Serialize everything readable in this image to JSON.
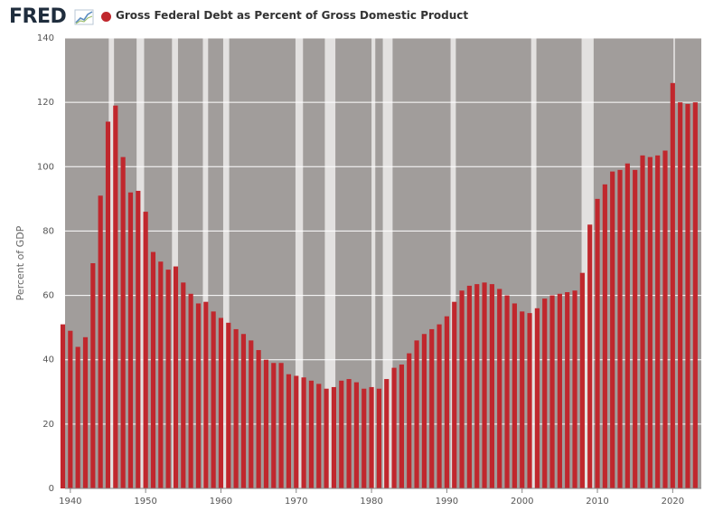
{
  "header": {
    "logo_text": "FRED",
    "title": "Gross Federal Debt as Percent of Gross Domestic Product"
  },
  "colors": {
    "bar": "#c0272d",
    "plot_background": "#a19d9b",
    "recession": "#e3e1e0",
    "grid": "#ffffff",
    "legend_dot": "#c0272d"
  },
  "chart_data": {
    "type": "bar",
    "title": "Gross Federal Debt as Percent of Gross Domestic Product",
    "xlabel": "",
    "ylabel": "Percent of GDP",
    "ylim": [
      0,
      140
    ],
    "xlim": [
      1939.3,
      2023.8
    ],
    "y_ticks": [
      "0",
      "20",
      "40",
      "60",
      "80",
      "100",
      "120",
      "140"
    ],
    "x_ticks": [
      "1940",
      "1950",
      "1960",
      "1970",
      "1980",
      "1990",
      "2000",
      "2010",
      "2020"
    ],
    "grid": true,
    "legend": "top-left",
    "categories": [
      1939,
      1940,
      1941,
      1942,
      1943,
      1944,
      1945,
      1946,
      1947,
      1948,
      1949,
      1950,
      1951,
      1952,
      1953,
      1954,
      1955,
      1956,
      1957,
      1958,
      1959,
      1960,
      1961,
      1962,
      1963,
      1964,
      1965,
      1966,
      1967,
      1968,
      1969,
      1970,
      1971,
      1972,
      1973,
      1974,
      1975,
      1976,
      1977,
      1978,
      1979,
      1980,
      1981,
      1982,
      1983,
      1984,
      1985,
      1986,
      1987,
      1988,
      1989,
      1990,
      1991,
      1992,
      1993,
      1994,
      1995,
      1996,
      1997,
      1998,
      1999,
      2000,
      2001,
      2002,
      2003,
      2004,
      2005,
      2006,
      2007,
      2008,
      2009,
      2010,
      2011,
      2012,
      2013,
      2014,
      2015,
      2016,
      2017,
      2018,
      2019,
      2020,
      2021,
      2022,
      2023
    ],
    "values": [
      51,
      49,
      44,
      47,
      70,
      91,
      114,
      119,
      103,
      92,
      92.5,
      86,
      73.5,
      70.5,
      68,
      69,
      64,
      60.5,
      57.5,
      58,
      55,
      53,
      51.5,
      49.5,
      48,
      46,
      43,
      40,
      39,
      39,
      35.5,
      35,
      34.5,
      33.5,
      32.5,
      31,
      31.5,
      33.5,
      34,
      33,
      31,
      31.5,
      31,
      34,
      37.5,
      38.5,
      42,
      46,
      48,
      49.5,
      51,
      53.5,
      58,
      61.5,
      63,
      63.5,
      64,
      63.5,
      62,
      60,
      57.5,
      55,
      54.5,
      56,
      59,
      60,
      60.5,
      61,
      61.5,
      67,
      82,
      90,
      94.5,
      98.5,
      99,
      101,
      99,
      103.5,
      103,
      103.5,
      105,
      126,
      120,
      119.5,
      120
    ],
    "recessions": [
      [
        1945.1,
        1945.8
      ],
      [
        1948.8,
        1949.8
      ],
      [
        1953.5,
        1954.3
      ],
      [
        1957.6,
        1958.3
      ],
      [
        1960.3,
        1961.1
      ],
      [
        1969.9,
        1970.9
      ],
      [
        1973.8,
        1975.2
      ],
      [
        1980.0,
        1980.5
      ],
      [
        1981.5,
        1982.8
      ],
      [
        1990.5,
        1991.2
      ],
      [
        2001.2,
        2001.9
      ],
      [
        2007.9,
        2009.5
      ],
      [
        2020.1,
        2020.3
      ]
    ]
  }
}
